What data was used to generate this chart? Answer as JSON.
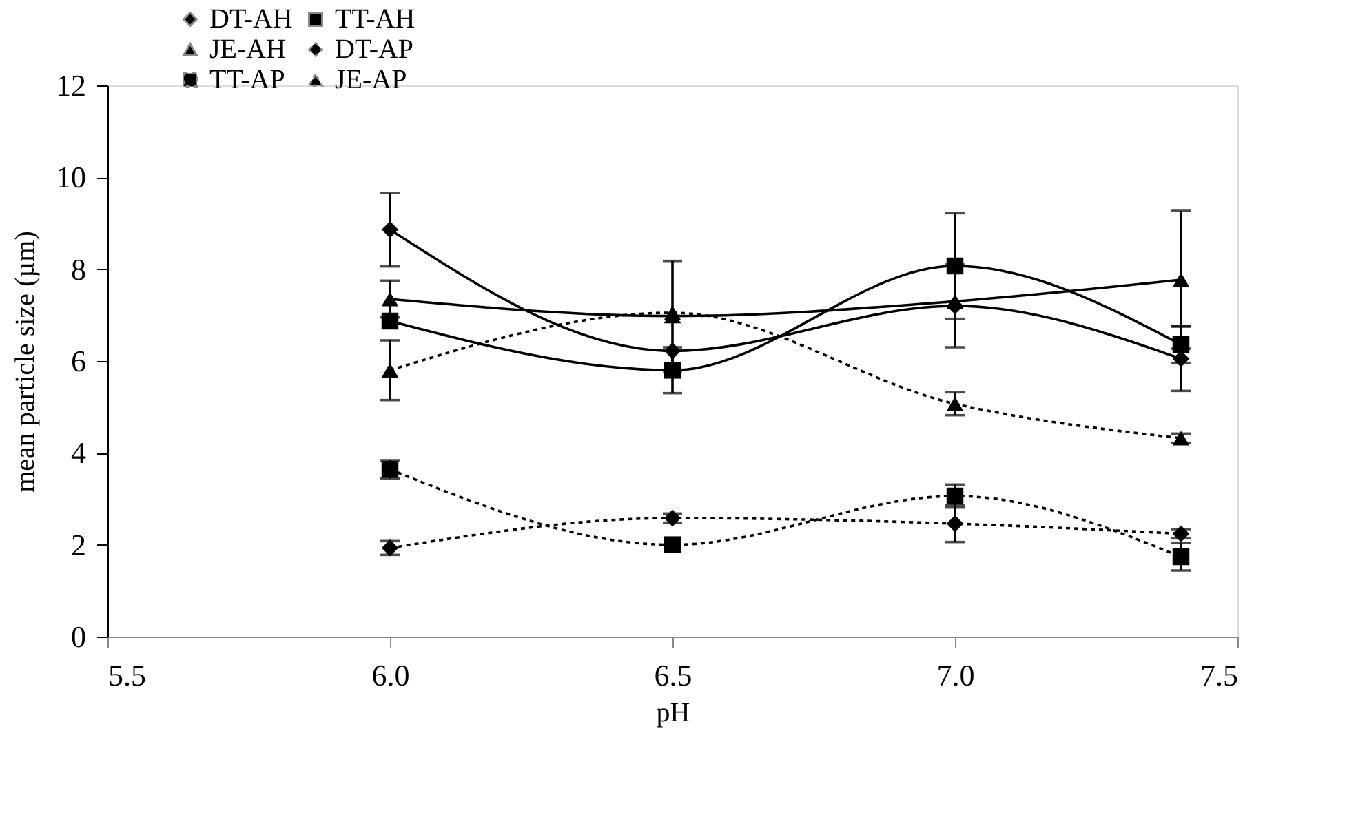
{
  "chart_data": {
    "type": "line",
    "xlabel": "pH",
    "ylabel": "mean particle size (µm)",
    "x": [
      6.0,
      6.5,
      7.0,
      7.4
    ],
    "xlim": [
      5.5,
      7.5
    ],
    "xticks": [
      5.5,
      {
        "value": 6.0,
        "label": "6.0"
      },
      6.5,
      {
        "value": 7.0,
        "label": "7.0"
      },
      7.5
    ],
    "ylim": [
      0,
      12
    ],
    "yticks": [
      0,
      2,
      4,
      6,
      8,
      10,
      12
    ],
    "grid": false,
    "legend": "top left",
    "series": [
      {
        "name": "DT-AH",
        "color": "#000000",
        "marker": "diamond",
        "line_style": "solid",
        "values": [
          8.86,
          6.22,
          7.2,
          6.05
        ],
        "errors": [
          0.8,
          null,
          0.9,
          0.7
        ]
      },
      {
        "name": "TT-AH",
        "color": "#000000",
        "marker": "square",
        "line_style": "solid",
        "values": [
          6.87,
          5.8,
          8.07,
          6.36
        ],
        "errors": [
          null,
          0.5,
          1.15,
          0.4
        ]
      },
      {
        "name": "JE-AH",
        "color": "#000000",
        "marker": "triangle",
        "line_style": "solid",
        "values": [
          7.35,
          6.98,
          7.3,
          7.77
        ],
        "errors": [
          0.4,
          1.2,
          null,
          1.5
        ]
      },
      {
        "name": "DT-AP",
        "color": "#000000",
        "marker": "diamond",
        "line_style": "dotted",
        "values": [
          1.93,
          2.58,
          2.46,
          2.24
        ],
        "errors": [
          0.15,
          0.1,
          0.4,
          0.1
        ]
      },
      {
        "name": "TT-AP",
        "color": "#000000",
        "marker": "square",
        "line_style": "dotted",
        "values": [
          3.64,
          2.0,
          3.06,
          1.74
        ],
        "errors": [
          0.2,
          null,
          0.25,
          0.3
        ]
      },
      {
        "name": "JE-AP",
        "color": "#000000",
        "marker": "triangle",
        "line_style": "dotted",
        "values": [
          5.8,
          7.05,
          5.07,
          4.32
        ],
        "errors": [
          0.65,
          null,
          0.25,
          0.1
        ]
      }
    ]
  }
}
